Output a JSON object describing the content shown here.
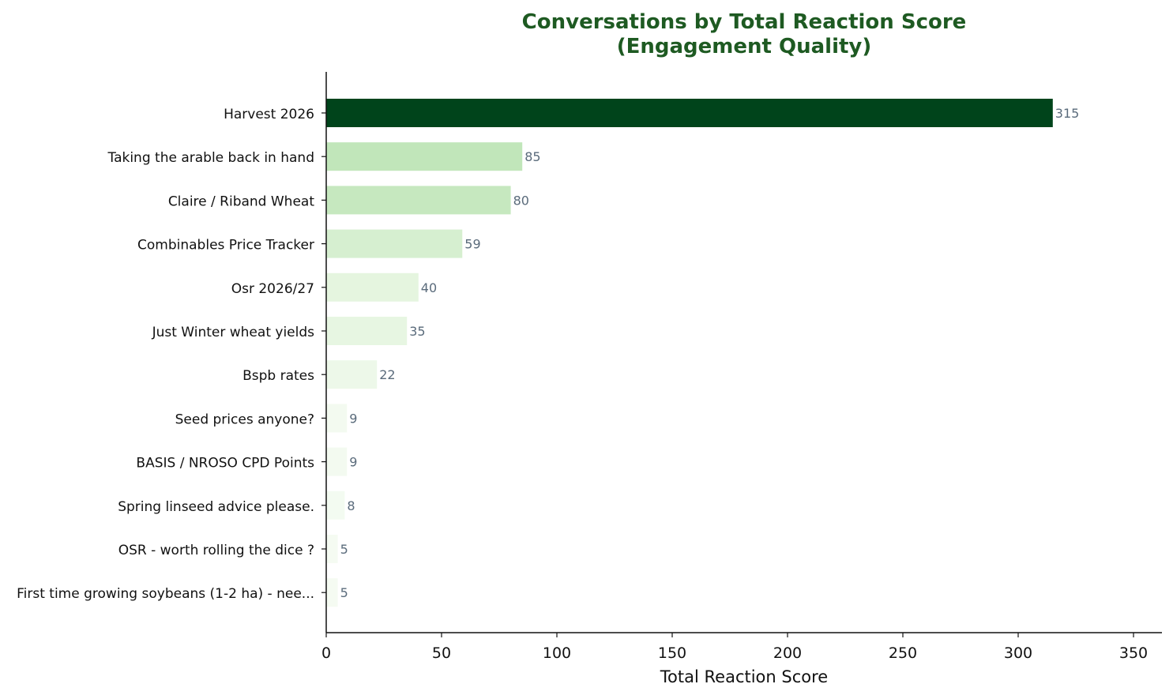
{
  "chart_data": {
    "type": "bar",
    "orientation": "horizontal",
    "title": "Conversations by Total Reaction Score\n(Engagement Quality)",
    "xlabel": "Total Reaction Score",
    "ylabel": "",
    "categories": [
      "Harvest 2026",
      "Taking the arable back in hand",
      "Claire / Riband Wheat",
      "Combinables Price Tracker",
      "Osr 2026/27",
      "Just Winter wheat yields",
      "Bspb rates",
      "Seed prices anyone?",
      "BASIS / NROSO CPD Points",
      "Spring linseed advice please.",
      "OSR - worth rolling the dice ?",
      "First time growing soybeans (1-2 ha) - nee..."
    ],
    "values": [
      315,
      85,
      80,
      59,
      40,
      35,
      22,
      9,
      9,
      8,
      5,
      5
    ],
    "value_labels": [
      "315",
      "85",
      "80",
      "59",
      "40",
      "35",
      "22",
      "9",
      "9",
      "8",
      "5",
      "5"
    ],
    "xlim": [
      0,
      362
    ],
    "xticks": [
      0,
      50,
      100,
      150,
      200,
      250,
      300,
      350
    ],
    "grid": false,
    "legend": "none",
    "colormap": "Greens",
    "colors": {
      "title": "#1e5a22",
      "value_label": "#5a6b7b",
      "axis": "#111111",
      "bar_max": "#00441b",
      "bar_min": "#f7fcf5"
    }
  }
}
